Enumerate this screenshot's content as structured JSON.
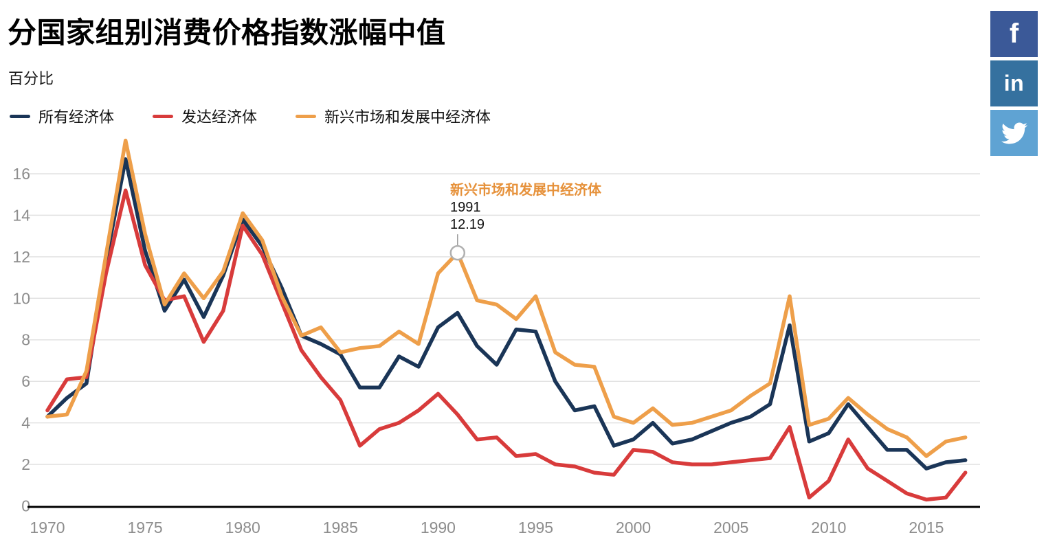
{
  "header": {
    "title": "分国家组别消费价格指数涨幅中值",
    "subtitle": "百分比"
  },
  "tooltip": {
    "year": "1991",
    "value": "12.19",
    "color": "#e6913a"
  },
  "social": {
    "facebook_label": "f",
    "linkedin_label": "in",
    "facebook_color": "#3b5998",
    "linkedin_color": "#35719f",
    "twitter_color": "#5fa3d3"
  },
  "chart_data": {
    "type": "line",
    "title": "分国家组别消费价格指数涨幅中值",
    "ylabel": "百分比",
    "grid": true,
    "legend_position": "top-left",
    "xticks": [
      1970,
      1975,
      1980,
      1985,
      1990,
      1995,
      2000,
      2005,
      2010,
      2015
    ],
    "yticks": [
      0,
      2,
      4,
      6,
      8,
      10,
      12,
      14,
      16
    ],
    "ylim": [
      0,
      17.7
    ],
    "x": [
      1970,
      1971,
      1972,
      1973,
      1974,
      1975,
      1976,
      1977,
      1978,
      1979,
      1980,
      1981,
      1982,
      1983,
      1984,
      1985,
      1986,
      1987,
      1988,
      1989,
      1990,
      1991,
      1992,
      1993,
      1994,
      1995,
      1996,
      1997,
      1998,
      1999,
      2000,
      2001,
      2002,
      2003,
      2004,
      2005,
      2006,
      2007,
      2008,
      2009,
      2010,
      2011,
      2012,
      2013,
      2014,
      2015,
      2016,
      2017
    ],
    "series": [
      {
        "name": "所有经济体",
        "color": "#1a3557",
        "values": [
          4.3,
          5.2,
          5.9,
          11.8,
          16.7,
          12.3,
          9.4,
          10.9,
          9.1,
          11.1,
          13.8,
          12.5,
          10.5,
          8.2,
          7.8,
          7.3,
          5.7,
          5.7,
          7.2,
          6.7,
          8.6,
          9.3,
          7.7,
          6.8,
          8.5,
          8.4,
          6.0,
          4.6,
          4.8,
          2.9,
          3.2,
          4.0,
          3.0,
          3.2,
          3.6,
          4.0,
          4.3,
          4.9,
          8.7,
          3.1,
          3.5,
          4.9,
          3.8,
          2.7,
          2.7,
          1.8,
          2.1,
          2.2
        ]
      },
      {
        "name": "发达经济体",
        "color": "#d83b3b",
        "values": [
          4.6,
          6.1,
          6.2,
          11.2,
          15.2,
          11.6,
          9.9,
          10.1,
          7.9,
          9.4,
          13.5,
          12.1,
          9.8,
          7.5,
          6.2,
          5.1,
          2.9,
          3.7,
          4.0,
          4.6,
          5.4,
          4.4,
          3.2,
          3.3,
          2.4,
          2.5,
          2.0,
          1.9,
          1.6,
          1.5,
          2.7,
          2.6,
          2.1,
          2.0,
          2.0,
          2.1,
          2.2,
          2.3,
          3.8,
          0.4,
          1.2,
          3.2,
          1.8,
          1.2,
          0.6,
          0.3,
          0.4,
          1.6
        ]
      },
      {
        "name": "新兴市场和发展中经济体",
        "color": "#ee9f4a",
        "values": [
          4.3,
          4.4,
          6.5,
          12.1,
          17.6,
          13.1,
          9.7,
          11.2,
          10.0,
          11.3,
          14.1,
          12.8,
          10.1,
          8.2,
          8.6,
          7.4,
          7.6,
          7.7,
          8.4,
          7.8,
          11.2,
          12.19,
          9.9,
          9.7,
          9.0,
          10.1,
          7.4,
          6.8,
          6.7,
          4.3,
          4.0,
          4.7,
          3.9,
          4.0,
          4.3,
          4.6,
          5.3,
          5.9,
          10.1,
          3.9,
          4.2,
          5.2,
          4.4,
          3.7,
          3.3,
          2.4,
          3.1,
          3.3
        ]
      }
    ],
    "annotation": {
      "series_index": 2,
      "year": 1991,
      "value": 12.19
    }
  }
}
